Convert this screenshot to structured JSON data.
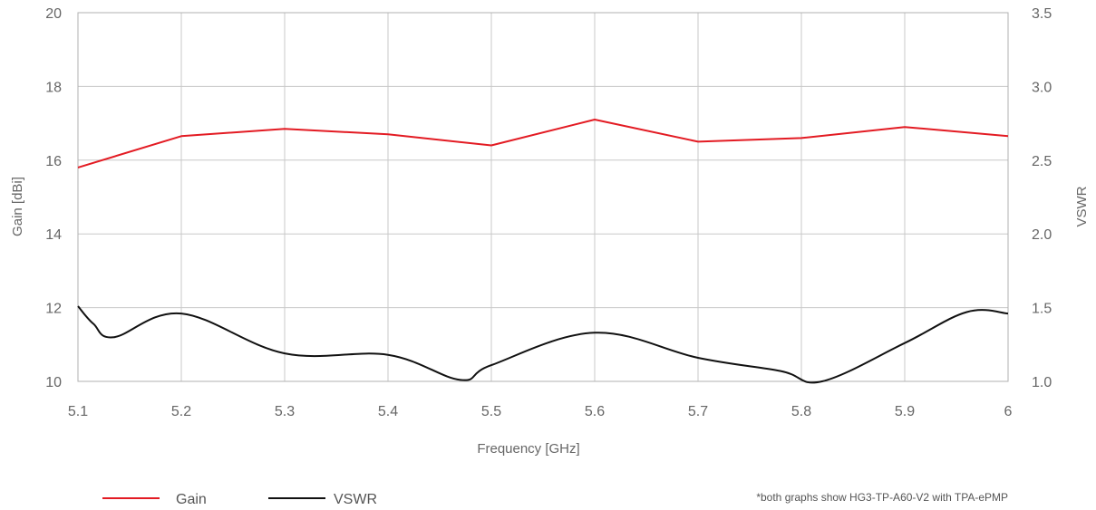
{
  "chart_data": {
    "type": "line",
    "xlabel": "Frequency [GHz]",
    "ylabel": "Gain [dBi]",
    "y2label": "VSWR",
    "xlim": [
      5.1,
      6.0
    ],
    "ylim": [
      10,
      20
    ],
    "y2lim": [
      1.0,
      3.5
    ],
    "x_ticks": [
      "5.1",
      "5.2",
      "5.3",
      "5.4",
      "5.5",
      "5.6",
      "5.7",
      "5.8",
      "5.9",
      "6"
    ],
    "y_ticks": [
      "10",
      "12",
      "14",
      "16",
      "18",
      "20"
    ],
    "y2_ticks": [
      "1.0",
      "1.5",
      "2.0",
      "2.5",
      "3.0",
      "3.5"
    ],
    "grid": true,
    "legend_position": "bottom-left",
    "series": [
      {
        "name": "Gain",
        "axis": "left",
        "color": "#e31b23",
        "x": [
          5.1,
          5.2,
          5.3,
          5.4,
          5.5,
          5.6,
          5.7,
          5.8,
          5.9,
          6.0
        ],
        "y": [
          15.8,
          16.65,
          16.85,
          16.7,
          16.4,
          17.1,
          16.5,
          16.6,
          16.9,
          16.65
        ]
      },
      {
        "name": "VSWR",
        "axis": "right",
        "color": "#111111",
        "x": [
          5.1,
          5.115,
          5.135,
          5.2,
          5.3,
          5.4,
          5.47,
          5.5,
          5.6,
          5.7,
          5.78,
          5.82,
          5.9,
          5.96,
          6.0
        ],
        "y": [
          1.51,
          1.39,
          1.3,
          1.46,
          1.19,
          1.18,
          1.01,
          1.11,
          1.33,
          1.16,
          1.07,
          1.0,
          1.26,
          1.47,
          1.46
        ]
      }
    ],
    "annotation": "*both graphs show HG3-TP-A60-V2 with TPA-ePMP"
  }
}
